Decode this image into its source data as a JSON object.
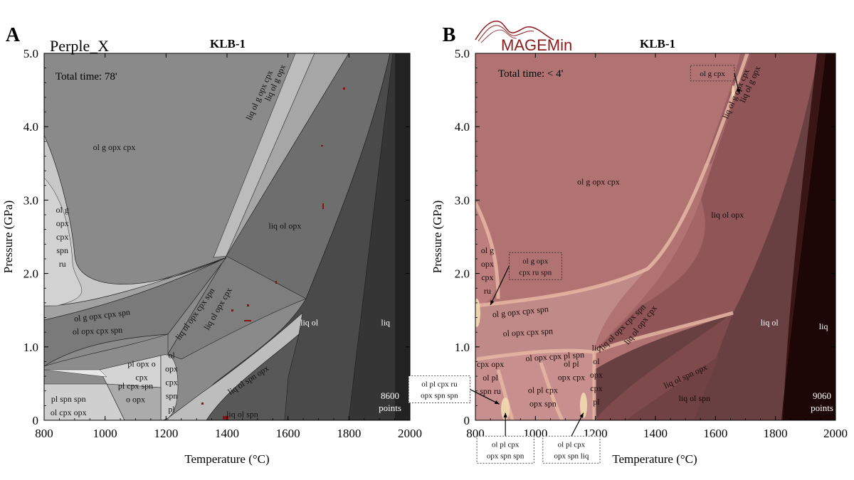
{
  "chart_data": [
    {
      "type": "heatmap",
      "panel_letter": "A",
      "software": "Perple_X",
      "title": "KLB-1",
      "xlabel": "Temperature (°C)",
      "ylabel": "Pressure (GPa)",
      "xlim": [
        800,
        2000
      ],
      "ylim": [
        0,
        5
      ],
      "x_ticks": [
        "800",
        "1000",
        "1200",
        "1400",
        "1600",
        "1800",
        "2000"
      ],
      "y_ticks": [
        "0",
        "1.0",
        "2.0",
        "3.0",
        "4.0",
        "5.0"
      ],
      "time_note": "Total time: 78'",
      "points_note": [
        "8600",
        "points"
      ],
      "fields": [
        {
          "label": [
            "ol g opx cpx"
          ],
          "T": 1030,
          "P": 3.72
        },
        {
          "label": [
            "liq ol g opx cpx"
          ],
          "T": 1506,
          "P": 4.43,
          "rotate": -66
        },
        {
          "label": [
            "liq ol g opx"
          ],
          "T": 1558,
          "P": 4.6,
          "rotate": -66
        },
        {
          "label": [
            "liq ol opx"
          ],
          "T": 1590,
          "P": 2.65
        },
        {
          "label": [
            "ol g",
            "opx",
            "cpx",
            "spn",
            "ru"
          ],
          "T": 860,
          "P": 2.5
        },
        {
          "label": [
            "ol g opx cpx spn"
          ],
          "T": 990,
          "P": 1.43,
          "rotate": -7
        },
        {
          "label": [
            "ol opx cpx spn"
          ],
          "T": 975,
          "P": 1.22,
          "rotate": -2
        },
        {
          "label": [
            "liq ol opx cpx spn"
          ],
          "T": 1295,
          "P": 1.45,
          "rotate": -55
        },
        {
          "label": [
            "liq ol opx cpx"
          ],
          "T": 1370,
          "P": 1.52,
          "rotate": -60
        },
        {
          "label": [
            "liq ol"
          ],
          "T": 1670,
          "P": 1.33
        },
        {
          "label": [
            "liq"
          ],
          "T": 1920,
          "P": 1.33
        },
        {
          "label": [
            "pl opx o",
            "cpx"
          ],
          "T": 1120,
          "P": 0.68
        },
        {
          "label": [
            "ol",
            "opx",
            "cpx",
            "spn",
            "pl"
          ],
          "T": 1218,
          "P": 0.52
        },
        {
          "label": [
            "pl cpx spn",
            "o opx"
          ],
          "T": 1100,
          "P": 0.38
        },
        {
          "label": [
            "pl spn spn",
            "ol cpx opx"
          ],
          "T": 880,
          "P": 0.2
        },
        {
          "label": [
            "liq ol spn opx"
          ],
          "T": 1470,
          "P": 0.55,
          "rotate": -33
        },
        {
          "label": [
            "liq ol spn"
          ],
          "T": 1450,
          "P": 0.08
        }
      ]
    },
    {
      "type": "heatmap",
      "panel_letter": "B",
      "software": "MAGEMin",
      "title": "KLB-1",
      "xlabel": "Temperature (°C)",
      "ylabel": "Pressure (GPa)",
      "xlim": [
        800,
        2000
      ],
      "ylim": [
        0,
        5
      ],
      "x_ticks": [
        "800",
        "1000",
        "1200",
        "1400",
        "1600",
        "1800",
        "2000"
      ],
      "y_ticks": [
        "0",
        "1.0",
        "2.0",
        "3.0",
        "4.0",
        "5.0"
      ],
      "time_note": "Total time: < 4'",
      "points_note": [
        "9060",
        "points"
      ],
      "fields": [
        {
          "label": [
            "ol g opx cpx"
          ],
          "T": 1210,
          "P": 3.25
        },
        {
          "label": [
            "liq ol opx"
          ],
          "T": 1640,
          "P": 2.8
        },
        {
          "label": [
            "liq ol g opx cpx"
          ],
          "T": 1668,
          "P": 4.45,
          "rotate": -66
        },
        {
          "label": [
            "liq ol g opx"
          ],
          "T": 1715,
          "P": 4.58,
          "rotate": -66
        },
        {
          "label": [
            "ol g",
            "opx",
            "cpx",
            "ru"
          ],
          "T": 840,
          "P": 2.04
        },
        {
          "label": [
            "ol g opx cpx spn"
          ],
          "T": 950,
          "P": 1.48,
          "rotate": -6
        },
        {
          "label": [
            "ol opx cpx spn"
          ],
          "T": 975,
          "P": 1.2,
          "rotate": -3
        },
        {
          "label": [
            "ol opx cpx pl spn"
          ],
          "T": 1065,
          "P": 0.87,
          "rotate": -4
        },
        {
          "label": [
            "liq ol opx cpx spn"
          ],
          "T": 1290,
          "P": 1.27,
          "rotate": -45
        },
        {
          "label": [
            "liq ol opx cpx"
          ],
          "T": 1350,
          "P": 1.3,
          "rotate": -52
        },
        {
          "label": [
            "liq ol"
          ],
          "T": 1780,
          "P": 1.33
        },
        {
          "label": [
            "liq"
          ],
          "T": 1960,
          "P": 1.28
        },
        {
          "label": [
            "ol pl",
            "opx cpx"
          ],
          "T": 1120,
          "P": 0.68
        },
        {
          "label": [
            "liq",
            "ol",
            "opx",
            "cpx",
            "pl"
          ],
          "T": 1203,
          "P": 0.62
        },
        {
          "label": [
            "cpx opx",
            "ol pl",
            "spn ru"
          ],
          "T": 850,
          "P": 0.58
        },
        {
          "label": [
            "ol pl cpx",
            "opx spn"
          ],
          "T": 1025,
          "P": 0.32
        },
        {
          "label": [
            "liq ol spn opx"
          ],
          "T": 1500,
          "P": 0.6,
          "rotate": -25
        },
        {
          "label": [
            "liq ol spn"
          ],
          "T": 1530,
          "P": 0.3
        }
      ],
      "callouts": [
        {
          "label": [
            "ol g cpx"
          ],
          "box_T": 1590,
          "box_P": 4.73,
          "target_T": 1680,
          "target_P": 4.45
        },
        {
          "label": [
            "ol g opx",
            "cpx ru spn"
          ],
          "box_T": 1000,
          "box_P": 2.1,
          "target_T": 850,
          "target_P": 1.57
        },
        {
          "label": [
            "ol pl cpx ru",
            "opx spn spn"
          ],
          "box_T": 680,
          "box_P": 0.42,
          "target_T": 880,
          "target_P": 0.22
        },
        {
          "label": [
            "ol pl cpx",
            "opx spn spn"
          ],
          "box_T": 900,
          "box_P": -0.4,
          "target_T": 900,
          "target_P": 0.1
        },
        {
          "label": [
            "ol pl cpx",
            "opx spn liq"
          ],
          "box_T": 1120,
          "box_P": -0.4,
          "target_T": 1160,
          "target_P": 0.1
        }
      ]
    }
  ]
}
